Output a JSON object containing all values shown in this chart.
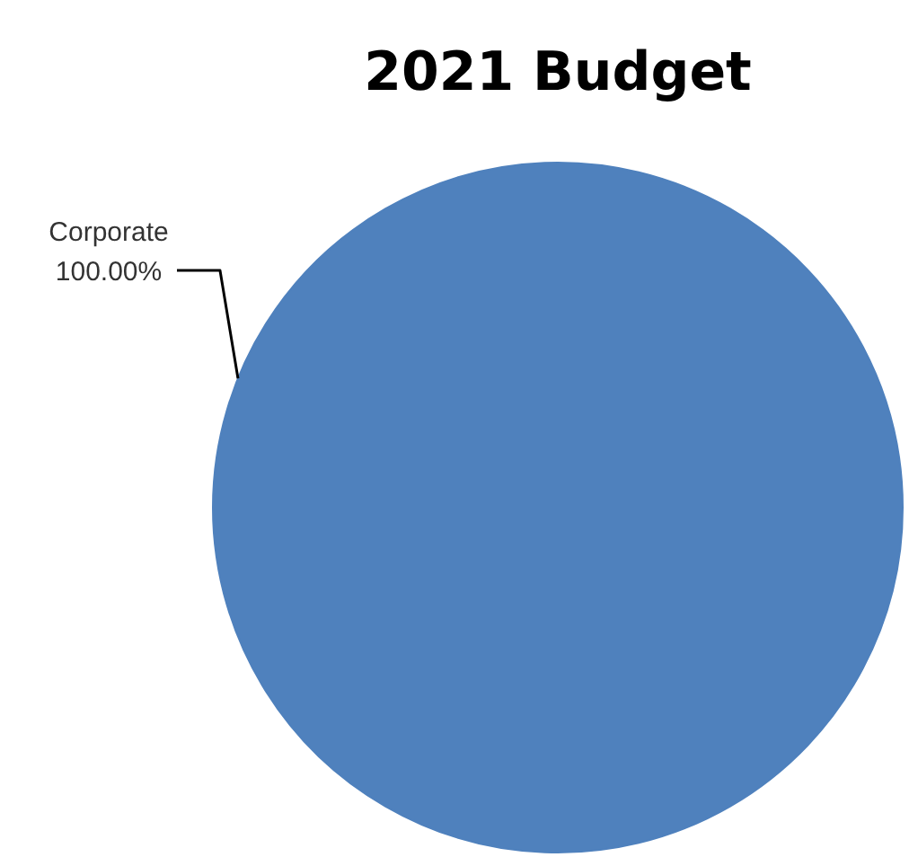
{
  "chart_data": {
    "type": "pie",
    "title": "2021 Budget",
    "categories": [
      "Corporate"
    ],
    "values": [
      100
    ],
    "colors": [
      "#4f81bd"
    ],
    "value_labels": [
      "100.00%"
    ]
  }
}
